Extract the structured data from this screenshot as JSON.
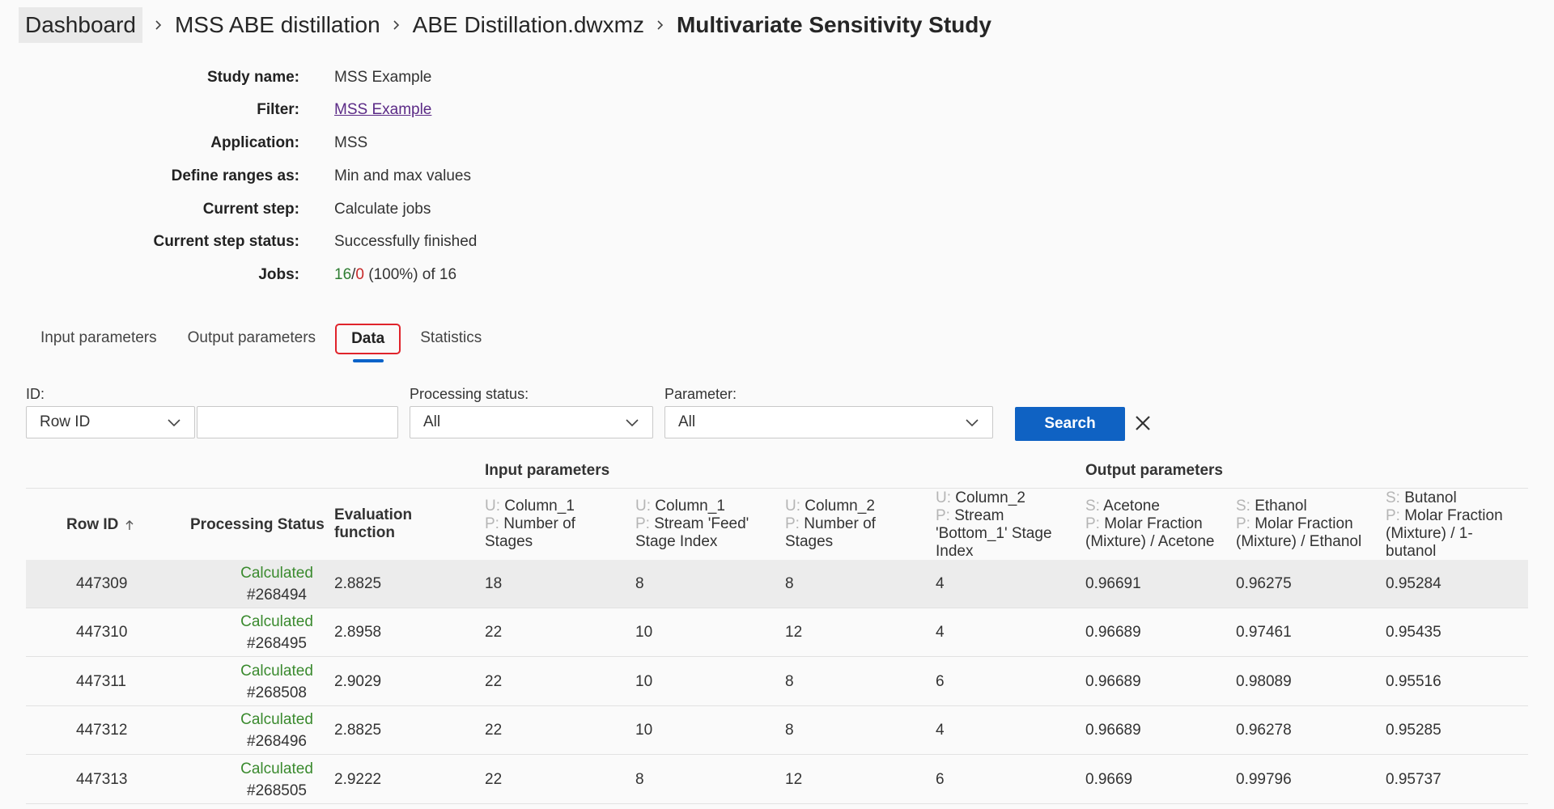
{
  "breadcrumb": {
    "items": [
      "Dashboard",
      "MSS ABE distillation",
      "ABE Distillation.dwxmz"
    ],
    "current": "Multivariate Sensitivity Study"
  },
  "details": {
    "study_name": {
      "label": "Study name:",
      "value": "MSS Example"
    },
    "filter": {
      "label": "Filter:",
      "value": "MSS Example"
    },
    "application": {
      "label": "Application:",
      "value": "MSS"
    },
    "define_ranges": {
      "label": "Define ranges as:",
      "value": "Min and max values"
    },
    "current_step": {
      "label": "Current step:",
      "value": "Calculate jobs"
    },
    "current_step_status": {
      "label": "Current step status:",
      "value": "Successfully finished"
    },
    "jobs": {
      "label": "Jobs:",
      "done": "16",
      "slash": "/",
      "failed": "0",
      "rest": " (100%) of 16"
    }
  },
  "tabs": [
    {
      "label": "Input parameters"
    },
    {
      "label": "Output parameters"
    },
    {
      "label": "Data",
      "active": true
    },
    {
      "label": "Statistics"
    }
  ],
  "filters": {
    "id_label": "ID:",
    "id_select": "Row ID",
    "id_value": "",
    "processing_label": "Processing status:",
    "processing_select": "All",
    "parameter_label": "Parameter:",
    "parameter_select": "All",
    "search_label": "Search"
  },
  "table": {
    "group_input": "Input parameters",
    "group_output": "Output parameters",
    "headers": {
      "row_id": "Row ID",
      "processing_status": "Processing Status",
      "eval_1": "Evaluation",
      "eval_2": "function",
      "in1": {
        "p1": "U:",
        "t1": " Column_1",
        "p2": "P:",
        "t2": " Number of",
        "t3": "Stages"
      },
      "in2": {
        "p1": "U:",
        "t1": " Column_1",
        "p2": "P:",
        "t2": " Stream 'Feed'",
        "t3": "Stage Index"
      },
      "in3": {
        "p1": "U:",
        "t1": " Column_2",
        "p2": "P:",
        "t2": " Number of",
        "t3": "Stages"
      },
      "in4": {
        "p1": "U:",
        "t1": " Column_2",
        "p2": "P:",
        "t2": " Stream",
        "t3": "'Bottom_1' Stage",
        "t4": "Index"
      },
      "out1": {
        "p1": "S:",
        "t1": " Acetone",
        "p2": "P:",
        "t2": " Molar Fraction",
        "t3": "(Mixture) / Acetone"
      },
      "out2": {
        "p1": "S:",
        "t1": " Ethanol",
        "p2": "P:",
        "t2": " Molar Fraction",
        "t3": "(Mixture) / Ethanol"
      },
      "out3": {
        "p1": "S:",
        "t1": " Butanol",
        "p2": "P:",
        "t2": " Molar Fraction",
        "t3": "(Mixture) / 1-",
        "t4": "butanol"
      }
    },
    "rows": [
      {
        "id": "447309",
        "status": "Calculated",
        "job": "#268494",
        "eval": "2.8825",
        "in1": "18",
        "in2": "8",
        "in3": "8",
        "in4": "4",
        "out1": "0.96691",
        "out2": "0.96275",
        "out3": "0.95284"
      },
      {
        "id": "447310",
        "status": "Calculated",
        "job": "#268495",
        "eval": "2.8958",
        "in1": "22",
        "in2": "10",
        "in3": "12",
        "in4": "4",
        "out1": "0.96689",
        "out2": "0.97461",
        "out3": "0.95435"
      },
      {
        "id": "447311",
        "status": "Calculated",
        "job": "#268508",
        "eval": "2.9029",
        "in1": "22",
        "in2": "10",
        "in3": "8",
        "in4": "6",
        "out1": "0.96689",
        "out2": "0.98089",
        "out3": "0.95516"
      },
      {
        "id": "447312",
        "status": "Calculated",
        "job": "#268496",
        "eval": "2.8825",
        "in1": "22",
        "in2": "10",
        "in3": "8",
        "in4": "4",
        "out1": "0.96689",
        "out2": "0.96278",
        "out3": "0.95285"
      },
      {
        "id": "447313",
        "status": "Calculated",
        "job": "#268505",
        "eval": "2.9222",
        "in1": "22",
        "in2": "8",
        "in3": "12",
        "in4": "6",
        "out1": "0.9669",
        "out2": "0.99796",
        "out3": "0.95737"
      }
    ]
  },
  "colors": {
    "accent_blue": "#0f62c3",
    "status_green": "#3a8a2e",
    "failed_red": "#c62828",
    "tab_outline_red": "#e0232b"
  }
}
